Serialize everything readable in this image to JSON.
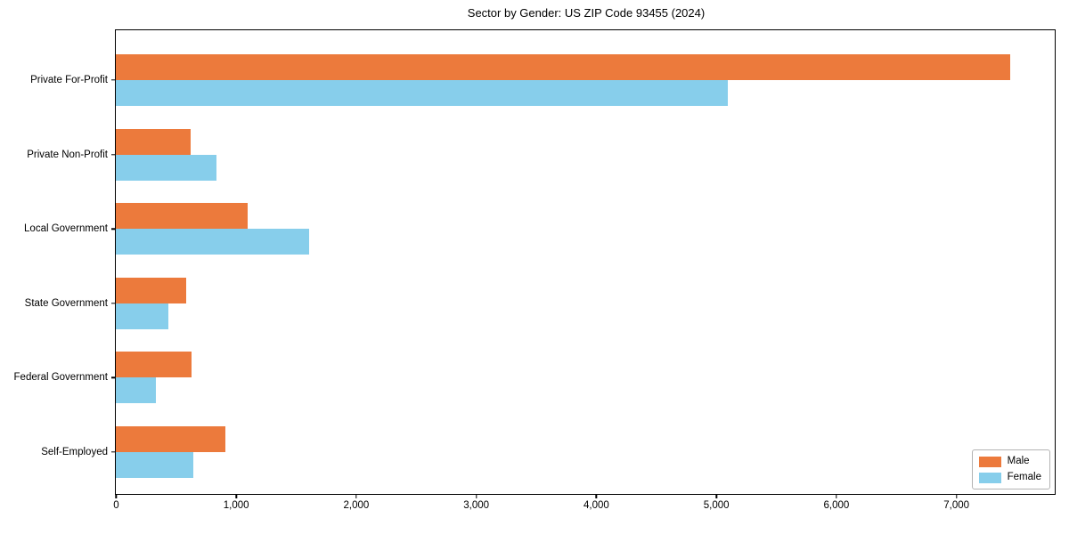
{
  "chart_data": {
    "type": "bar",
    "orientation": "horizontal",
    "title": "Sector by Gender: US ZIP Code 93455 (2024)",
    "categories": [
      "Private For-Profit",
      "Private Non-Profit",
      "Local Government",
      "State Government",
      "Federal Government",
      "Self-Employed"
    ],
    "series": [
      {
        "name": "Male",
        "color": "#EC7A3C",
        "values": [
          7450,
          625,
          1100,
          585,
          630,
          915
        ]
      },
      {
        "name": "Female",
        "color": "#87CEEB",
        "values": [
          5100,
          840,
          1610,
          440,
          335,
          645
        ]
      }
    ],
    "xlabel": "",
    "ylabel": "",
    "xlim": [
      0,
      7822
    ],
    "x_ticks": [
      0,
      1000,
      2000,
      3000,
      4000,
      5000,
      6000,
      7000
    ],
    "x_tick_labels": [
      "0",
      "1,000",
      "2,000",
      "3,000",
      "4,000",
      "5,000",
      "6,000",
      "7,000"
    ],
    "grid": false,
    "legend": {
      "position": "lower right",
      "entries": [
        "Male",
        "Female"
      ]
    },
    "colors": {
      "spine": "#000000",
      "background": "#ffffff",
      "text": "#000000"
    }
  }
}
